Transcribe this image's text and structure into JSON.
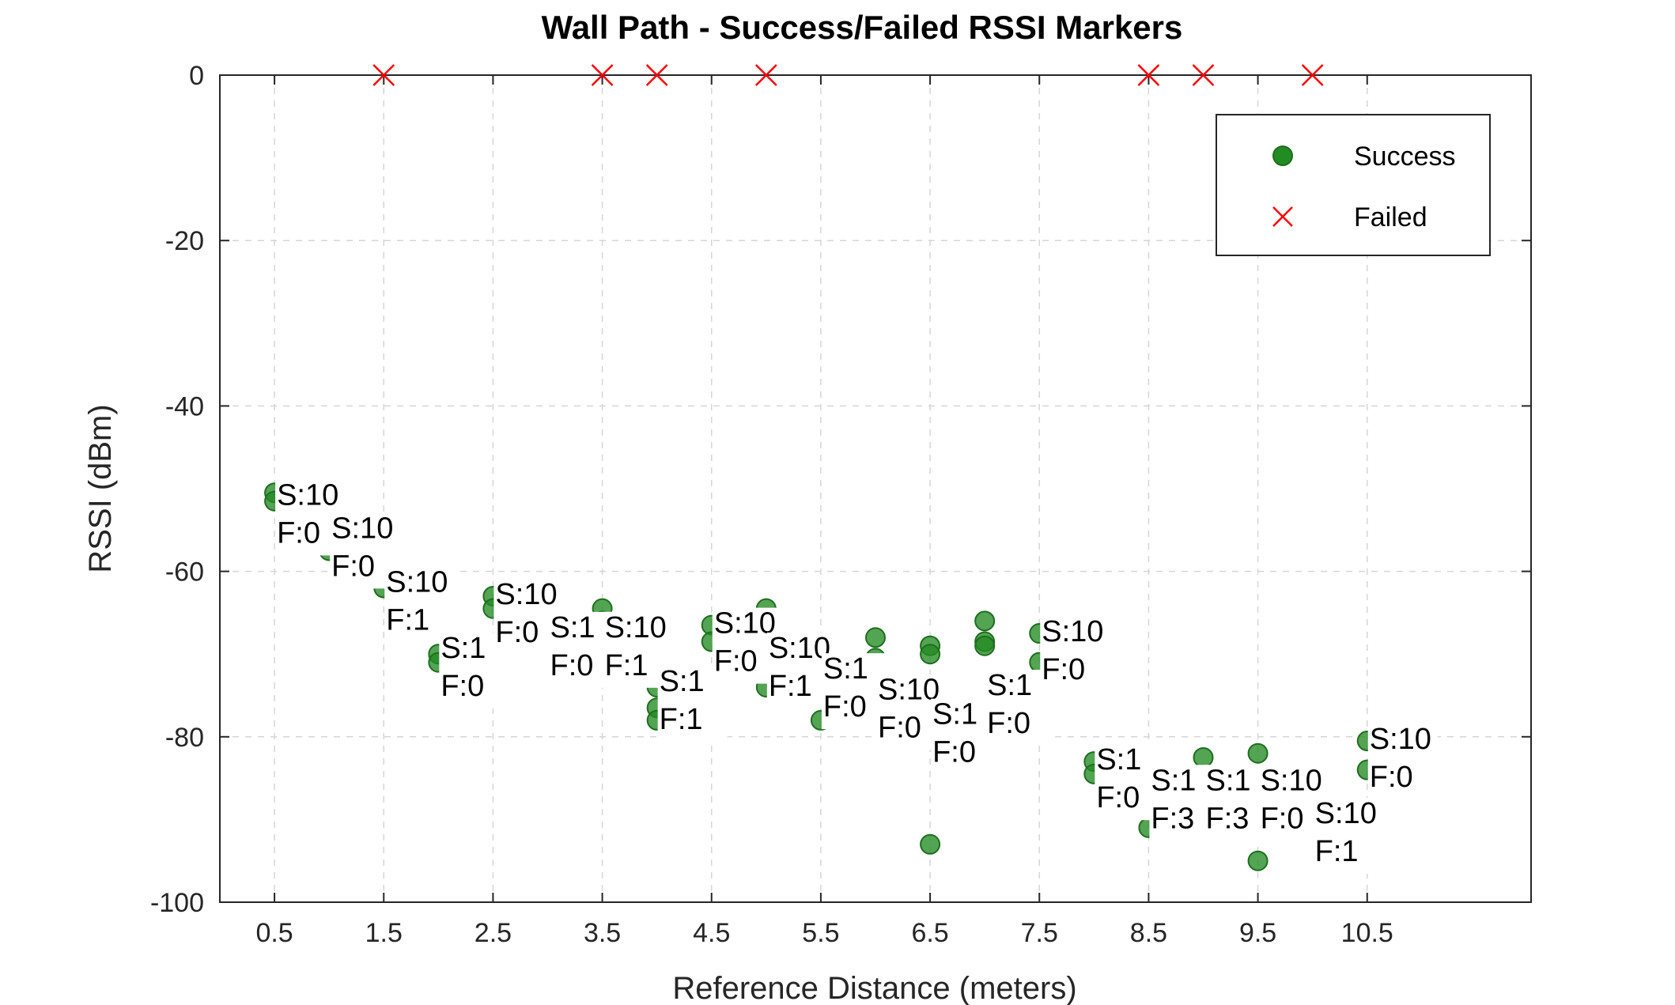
{
  "chart_data": {
    "type": "scatter",
    "title": "Wall Path - Success/Failed RSSI Markers",
    "xlabel": "Reference Distance (meters)",
    "ylabel": "RSSI (dBm)",
    "xlim": [
      0,
      12
    ],
    "ylim": [
      -100,
      0
    ],
    "x_ticks": [
      "0.5",
      "1.5",
      "2.5",
      "3.5",
      "4.5",
      "5.5",
      "6.5",
      "7.5",
      "8.5",
      "9.5",
      "10.5"
    ],
    "y_ticks": [
      "0",
      "-20",
      "-40",
      "-60",
      "-80",
      "-100"
    ],
    "grid": true,
    "legend_position": "top-right",
    "colors": {
      "success": "#228B22",
      "failed": "#FF0000"
    },
    "series": [
      {
        "name": "Success",
        "marker": "circle",
        "points": [
          {
            "x": 0.5,
            "y": -50.5
          },
          {
            "x": 0.5,
            "y": -51.5
          },
          {
            "x": 1.0,
            "y": -57.5
          },
          {
            "x": 1.5,
            "y": -62
          },
          {
            "x": 2.0,
            "y": -70
          },
          {
            "x": 2.0,
            "y": -71
          },
          {
            "x": 2.5,
            "y": -63
          },
          {
            "x": 2.5,
            "y": -64.5
          },
          {
            "x": 3.0,
            "y": -68
          },
          {
            "x": 3.5,
            "y": -64.5
          },
          {
            "x": 3.5,
            "y": -66
          },
          {
            "x": 4.0,
            "y": -74
          },
          {
            "x": 4.0,
            "y": -76.5
          },
          {
            "x": 4.0,
            "y": -78
          },
          {
            "x": 4.5,
            "y": -66.5
          },
          {
            "x": 4.5,
            "y": -68.5
          },
          {
            "x": 5.0,
            "y": -64.5
          },
          {
            "x": 5.0,
            "y": -74
          },
          {
            "x": 5.5,
            "y": -78
          },
          {
            "x": 6.0,
            "y": -68
          },
          {
            "x": 6.0,
            "y": -70.5
          },
          {
            "x": 6.5,
            "y": -69
          },
          {
            "x": 6.5,
            "y": -70
          },
          {
            "x": 6.5,
            "y": -80
          },
          {
            "x": 6.5,
            "y": -93
          },
          {
            "x": 7.0,
            "y": -66
          },
          {
            "x": 7.0,
            "y": -68.5
          },
          {
            "x": 7.0,
            "y": -69
          },
          {
            "x": 7.5,
            "y": -67.5
          },
          {
            "x": 7.5,
            "y": -71
          },
          {
            "x": 8.0,
            "y": -83
          },
          {
            "x": 8.0,
            "y": -84.5
          },
          {
            "x": 8.5,
            "y": -83
          },
          {
            "x": 8.5,
            "y": -91
          },
          {
            "x": 9.0,
            "y": -82.5
          },
          {
            "x": 9.0,
            "y": -91
          },
          {
            "x": 9.5,
            "y": -82
          },
          {
            "x": 9.5,
            "y": -95
          },
          {
            "x": 10.0,
            "y": -91
          },
          {
            "x": 10.5,
            "y": -80.5
          },
          {
            "x": 10.5,
            "y": -84
          }
        ]
      },
      {
        "name": "Failed",
        "marker": "x",
        "points": [
          {
            "x": 1.5,
            "y": 0
          },
          {
            "x": 3.5,
            "y": 0
          },
          {
            "x": 4.0,
            "y": 0
          },
          {
            "x": 5.0,
            "y": 0
          },
          {
            "x": 8.5,
            "y": 0
          },
          {
            "x": 9.0,
            "y": 0
          },
          {
            "x": 10.0,
            "y": 0
          }
        ]
      }
    ],
    "annotations": [
      {
        "x": 0.5,
        "y": -51,
        "line1": "S:10",
        "line2": "F:0"
      },
      {
        "x": 1.0,
        "y": -55,
        "line1": "S:10",
        "line2": "F:0"
      },
      {
        "x": 1.5,
        "y": -61.5,
        "line1": "S:10",
        "line2": "F:1"
      },
      {
        "x": 2.0,
        "y": -69.5,
        "line1": "S:1",
        "line2": "F:0"
      },
      {
        "x": 2.5,
        "y": -63,
        "line1": "S:10",
        "line2": "F:0"
      },
      {
        "x": 3.0,
        "y": -67,
        "line1": "S:1",
        "line2": "F:0"
      },
      {
        "x": 3.5,
        "y": -67,
        "line1": "S:10",
        "line2": "F:1"
      },
      {
        "x": 4.0,
        "y": -73.5,
        "line1": "S:1",
        "line2": "F:1"
      },
      {
        "x": 4.5,
        "y": -66.5,
        "line1": "S:10",
        "line2": "F:0"
      },
      {
        "x": 5.0,
        "y": -69.5,
        "line1": "S:10",
        "line2": "F:1"
      },
      {
        "x": 5.5,
        "y": -72,
        "line1": "S:1",
        "line2": "F:0"
      },
      {
        "x": 6.0,
        "y": -74.5,
        "line1": "S:10",
        "line2": "F:0"
      },
      {
        "x": 6.5,
        "y": -77.5,
        "line1": "S:1",
        "line2": "F:0"
      },
      {
        "x": 7.0,
        "y": -74,
        "line1": "S:1",
        "line2": "F:0"
      },
      {
        "x": 7.5,
        "y": -67.5,
        "line1": "S:10",
        "line2": "F:0"
      },
      {
        "x": 8.0,
        "y": -83,
        "line1": "S:1",
        "line2": "F:0"
      },
      {
        "x": 8.5,
        "y": -85.5,
        "line1": "S:1",
        "line2": "F:3"
      },
      {
        "x": 9.0,
        "y": -85.5,
        "line1": "S:1",
        "line2": "F:3"
      },
      {
        "x": 9.5,
        "y": -85.5,
        "line1": "S:10",
        "line2": "F:0"
      },
      {
        "x": 10.0,
        "y": -89.5,
        "line1": "S:10",
        "line2": "F:1"
      },
      {
        "x": 10.5,
        "y": -80.5,
        "line1": "S:10",
        "line2": "F:0"
      }
    ]
  }
}
